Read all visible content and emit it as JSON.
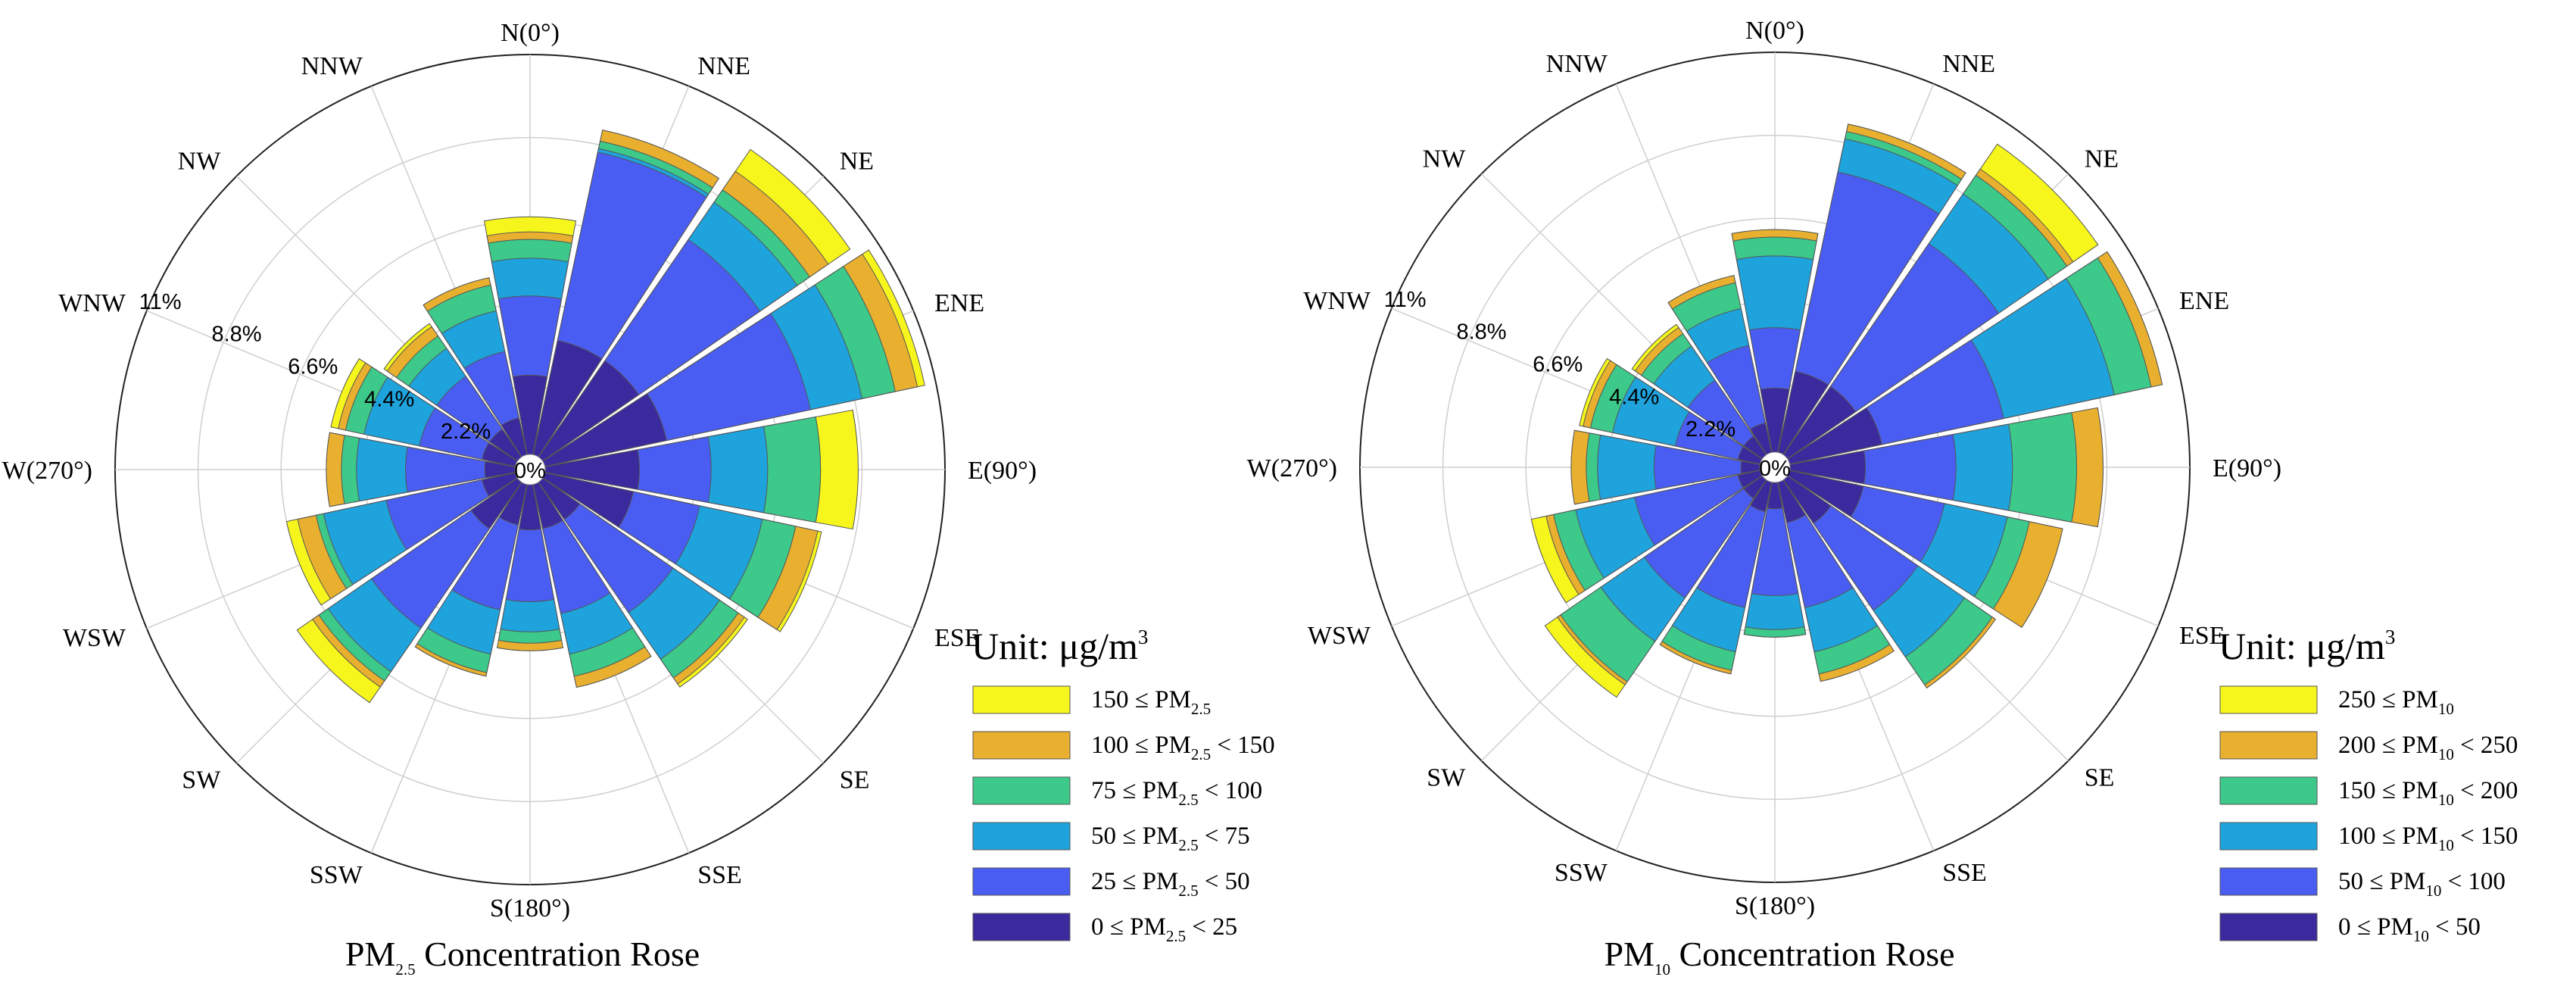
{
  "chart_data": [
    {
      "type": "rose",
      "title_main": "PM",
      "title_sub": "2.5",
      "title_rest": "Concentration Rose",
      "directions": [
        "N(0°)",
        "NNE",
        "NE",
        "ENE",
        "E(90°)",
        "ESE",
        "SE",
        "SSE",
        "S(180°)",
        "SSW",
        "SW",
        "WSW",
        "W(270°)",
        "WNW",
        "NW",
        "NNW"
      ],
      "ring_labels": [
        "0%",
        "2.2%",
        "4.4%",
        "6.6%",
        "8.8%",
        "11%"
      ],
      "radial_range": [
        0,
        11
      ],
      "legend_title_main": "Unit: μg/m",
      "legend_title_sup": "3",
      "bins": [
        {
          "lower": "0",
          "upper": "25",
          "color": "#3a2a9e"
        },
        {
          "lower": "25",
          "upper": "50",
          "color": "#4a5df2"
        },
        {
          "lower": "50",
          "upper": "75",
          "color": "#1fa3dd"
        },
        {
          "lower": "75",
          "upper": "100",
          "color": "#3cc98a"
        },
        {
          "lower": "100",
          "upper": "150",
          "color": "#e8b02e"
        },
        {
          "lower": "150",
          "upper": "",
          "color": "#f6f61c"
        }
      ],
      "pollutant": "PM",
      "pollutant_sub": "2.5",
      "values": [
        [
          2.5,
          4.6,
          5.6,
          6.1,
          6.3,
          6.7
        ],
        [
          3.5,
          8.6,
          8.7,
          8.9,
          9.2,
          9.2
        ],
        [
          3.5,
          7.4,
          8.6,
          9.0,
          9.6,
          10.3
        ],
        [
          3.7,
          7.6,
          9.0,
          9.9,
          10.5,
          10.7
        ],
        [
          2.9,
          4.8,
          6.3,
          7.7,
          7.7,
          8.7
        ],
        [
          2.8,
          4.6,
          6.3,
          7.2,
          7.8,
          7.9
        ],
        [
          1.6,
          4.6,
          6.1,
          6.7,
          6.9,
          7.0
        ],
        [
          1.6,
          3.9,
          5.0,
          5.6,
          5.9,
          5.9
        ],
        [
          1.6,
          3.5,
          4.3,
          4.6,
          4.8,
          4.8
        ],
        [
          1.5,
          3.8,
          5.0,
          5.5,
          5.6,
          5.6
        ],
        [
          1.9,
          5.1,
          6.5,
          6.8,
          7.0,
          7.5
        ],
        [
          1.3,
          3.9,
          5.6,
          5.8,
          6.3,
          6.6
        ],
        [
          1.2,
          3.3,
          4.6,
          5.0,
          5.4,
          5.4
        ],
        [
          1.3,
          3.0,
          4.5,
          5.0,
          5.2,
          5.4
        ],
        [
          1.3,
          3.0,
          3.9,
          4.3,
          4.6,
          4.7
        ],
        [
          1.4,
          3.2,
          4.3,
          5.0,
          5.2,
          5.2
        ]
      ]
    },
    {
      "type": "rose",
      "title_main": "PM",
      "title_sub": "10",
      "title_rest": "Concentration Rose",
      "directions": [
        "N(0°)",
        "NNE",
        "NE",
        "ENE",
        "E(90°)",
        "ESE",
        "SE",
        "SSE",
        "S(180°)",
        "SSW",
        "SW",
        "WSW",
        "W(270°)",
        "WNW",
        "NW",
        "NNW"
      ],
      "ring_labels": [
        "0%",
        "2.2%",
        "4.4%",
        "6.6%",
        "8.8%",
        "11%"
      ],
      "radial_range": [
        0,
        11
      ],
      "legend_title_main": "Unit: μg/m",
      "legend_title_sup": "3",
      "bins": [
        {
          "lower": "0",
          "upper": "50",
          "color": "#3a2a9e"
        },
        {
          "lower": "50",
          "upper": "100",
          "color": "#4a5df2"
        },
        {
          "lower": "100",
          "upper": "150",
          "color": "#1fa3dd"
        },
        {
          "lower": "150",
          "upper": "200",
          "color": "#3cc98a"
        },
        {
          "lower": "200",
          "upper": "250",
          "color": "#e8b02e"
        },
        {
          "lower": "250",
          "upper": "",
          "color": "#f6f61c"
        }
      ],
      "pollutant": "PM",
      "pollutant_sub": "10",
      "values": [
        [
          2.1,
          3.7,
          5.6,
          6.1,
          6.3,
          6.3
        ],
        [
          2.6,
          8.0,
          8.9,
          9.1,
          9.3,
          9.3
        ],
        [
          2.6,
          7.2,
          8.8,
          9.4,
          9.6,
          10.4
        ],
        [
          2.9,
          6.2,
          9.2,
          10.2,
          10.5,
          10.5
        ],
        [
          2.4,
          4.8,
          6.3,
          8.0,
          8.7,
          8.7
        ],
        [
          2.4,
          4.6,
          6.3,
          6.9,
          7.8,
          7.8
        ],
        [
          1.8,
          4.6,
          6.1,
          7.0,
          7.1,
          7.1
        ],
        [
          1.5,
          3.8,
          5.0,
          5.6,
          5.8,
          5.8
        ],
        [
          1.1,
          3.4,
          4.3,
          4.5,
          4.5,
          4.5
        ],
        [
          1.2,
          3.8,
          5.0,
          5.5,
          5.6,
          5.6
        ],
        [
          1.0,
          4.2,
          5.6,
          6.9,
          7.0,
          7.4
        ],
        [
          1.0,
          3.8,
          5.4,
          6.0,
          6.2,
          6.6
        ],
        [
          0.9,
          3.2,
          4.7,
          5.0,
          5.4,
          5.4
        ],
        [
          1.0,
          2.7,
          4.4,
          5.0,
          5.2,
          5.3
        ],
        [
          1.0,
          2.8,
          3.9,
          4.3,
          4.5,
          4.6
        ],
        [
          1.2,
          3.3,
          4.3,
          5.0,
          5.2,
          5.2
        ]
      ]
    }
  ]
}
